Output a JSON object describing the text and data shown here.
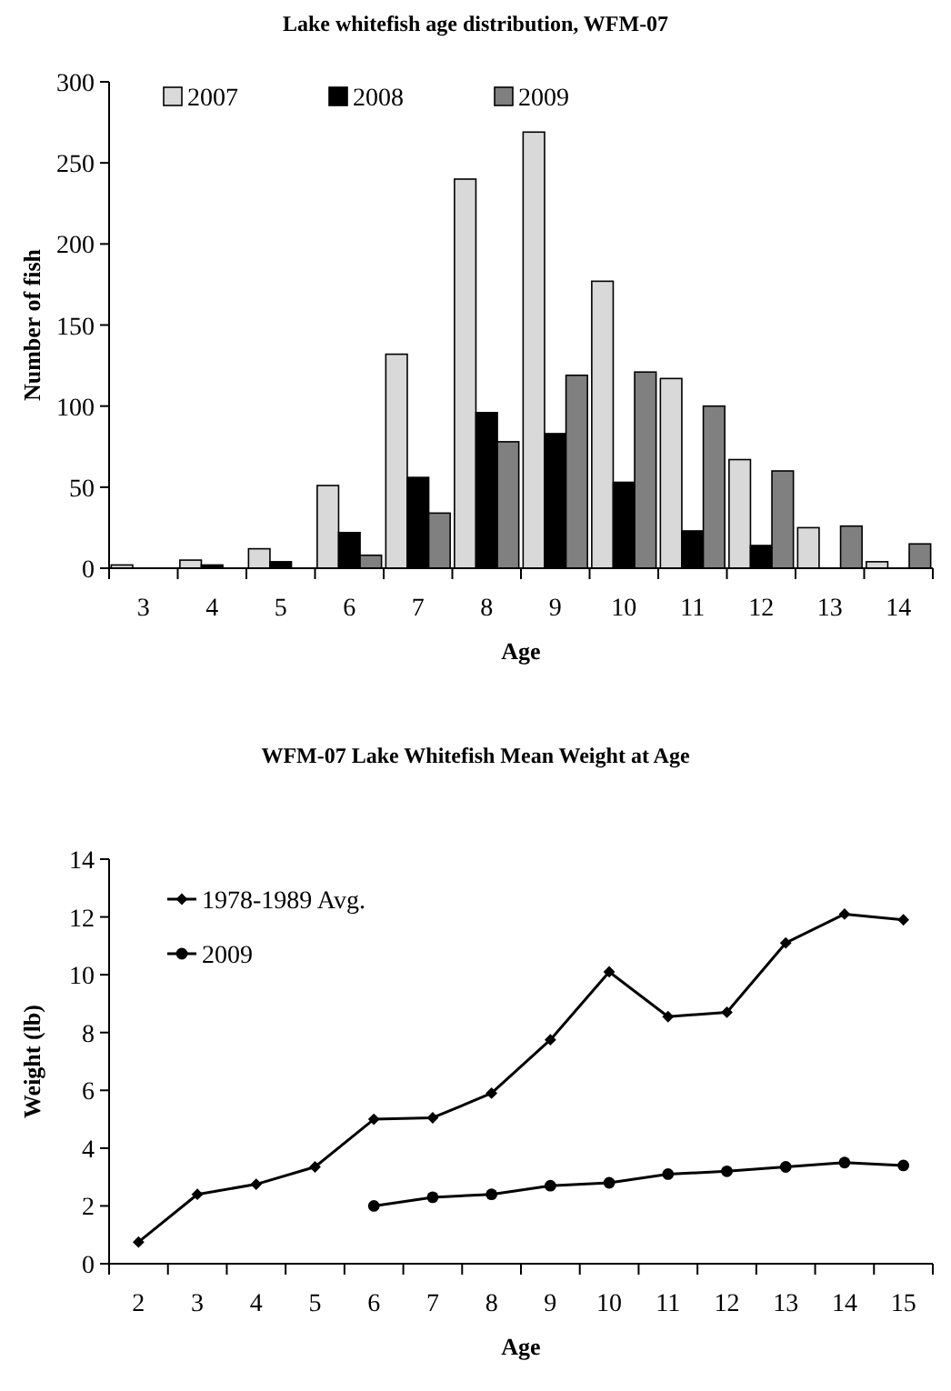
{
  "chart_data": [
    {
      "type": "bar",
      "title": "Lake whitefish age distribution, WFM-07",
      "xlabel": "Age",
      "ylabel": "Number of fish",
      "categories": [
        "3",
        "4",
        "5",
        "6",
        "7",
        "8",
        "9",
        "10",
        "11",
        "12",
        "13",
        "14"
      ],
      "series": [
        {
          "name": "2007",
          "color": "#d9d9d9",
          "values": [
            2,
            5,
            12,
            51,
            132,
            240,
            269,
            177,
            117,
            67,
            25,
            4
          ]
        },
        {
          "name": "2008",
          "color": "#000000",
          "values": [
            0,
            2,
            4,
            22,
            56,
            96,
            83,
            53,
            23,
            14,
            0,
            0
          ]
        },
        {
          "name": "2009",
          "color": "#808080",
          "values": [
            0,
            0,
            0,
            8,
            34,
            78,
            119,
            121,
            100,
            60,
            26,
            15
          ]
        }
      ],
      "ylim": [
        0,
        300
      ],
      "yticks": [
        0,
        50,
        100,
        150,
        200,
        250,
        300
      ],
      "grid": false,
      "legend": "top"
    },
    {
      "type": "line",
      "title": "WFM-07 Lake Whitefish Mean Weight at Age",
      "xlabel": "Age",
      "ylabel": "Weight (lb)",
      "categories": [
        "2",
        "3",
        "4",
        "5",
        "6",
        "7",
        "8",
        "9",
        "10",
        "11",
        "12",
        "13",
        "14",
        "15"
      ],
      "series": [
        {
          "name": "1978-1989 Avg.",
          "color": "#000000",
          "marker": "diamond",
          "values": [
            0.75,
            2.4,
            2.75,
            3.35,
            5.0,
            5.05,
            5.9,
            7.75,
            10.1,
            8.55,
            8.7,
            11.1,
            12.1,
            11.9
          ]
        },
        {
          "name": "2009",
          "color": "#000000",
          "marker": "circle",
          "values": [
            null,
            null,
            null,
            null,
            2.0,
            2.3,
            2.4,
            2.7,
            2.8,
            3.1,
            3.2,
            3.35,
            3.5,
            3.4
          ]
        }
      ],
      "ylim": [
        0,
        14
      ],
      "yticks": [
        0,
        2,
        4,
        6,
        8,
        10,
        12,
        14
      ],
      "grid": false,
      "legend": "top left"
    }
  ]
}
